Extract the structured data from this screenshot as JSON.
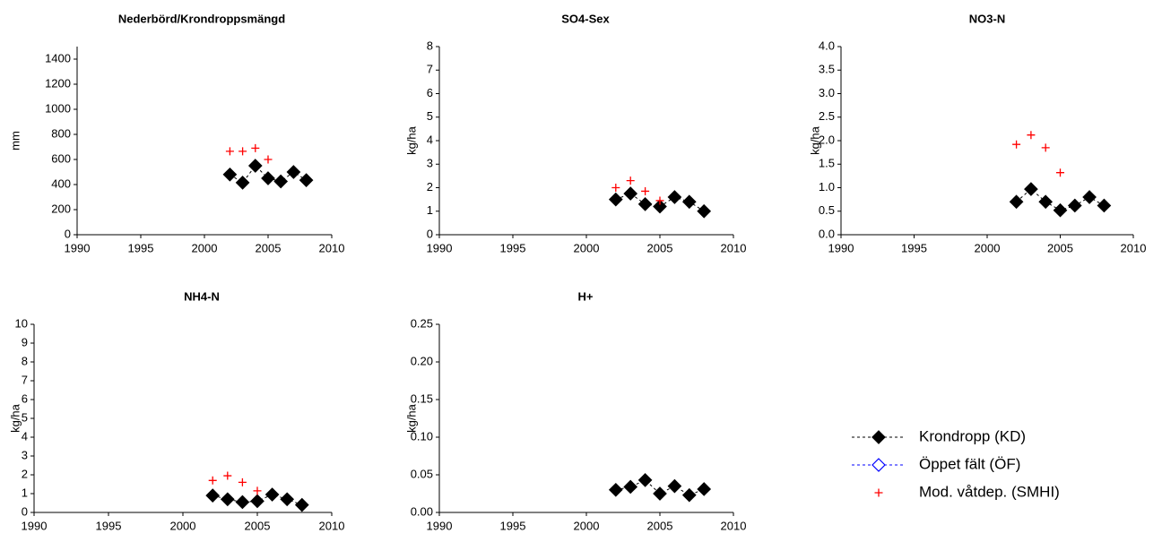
{
  "chart_data": [
    {
      "type": "scatter",
      "title": "Nederbörd/Krondroppsmängd",
      "ylabel": "mm",
      "xlim": [
        1990,
        2010
      ],
      "xticks": [
        1990,
        1995,
        2000,
        2005,
        2010
      ],
      "ylim": [
        0,
        1500
      ],
      "yticks": [
        0,
        200,
        400,
        600,
        800,
        1000,
        1200,
        1400
      ],
      "series": [
        {
          "x": [
            2002,
            2003,
            2004,
            2005,
            2006,
            2007,
            2008
          ],
          "values": [
            480,
            415,
            550,
            450,
            425,
            500,
            435
          ]
        },
        {
          "x": [],
          "values": []
        },
        {
          "x": [
            2002,
            2003,
            2004,
            2005
          ],
          "values": [
            665,
            665,
            690,
            600
          ]
        }
      ]
    },
    {
      "type": "scatter",
      "title": "SO4-Sex",
      "ylabel": "kg/ha",
      "xlim": [
        1990,
        2010
      ],
      "xticks": [
        1990,
        1995,
        2000,
        2005,
        2010
      ],
      "ylim": [
        0,
        8
      ],
      "yticks": [
        0,
        1,
        2,
        3,
        4,
        5,
        6,
        7,
        8
      ],
      "series": [
        {
          "x": [
            2002,
            2003,
            2004,
            2005,
            2006,
            2007,
            2008
          ],
          "values": [
            1.5,
            1.75,
            1.3,
            1.2,
            1.6,
            1.4,
            1.0
          ]
        },
        {
          "x": [],
          "values": []
        },
        {
          "x": [
            2002,
            2003,
            2004,
            2005
          ],
          "values": [
            2.0,
            2.3,
            1.85,
            1.45
          ]
        }
      ]
    },
    {
      "type": "scatter",
      "title": "NO3-N",
      "ylabel": "kg/ha",
      "xlim": [
        1990,
        2010
      ],
      "xticks": [
        1990,
        1995,
        2000,
        2005,
        2010
      ],
      "ylim": [
        0,
        4
      ],
      "yticks": [
        {
          "value": 0,
          "label": "0.0"
        },
        0.5,
        {
          "value": 1,
          "label": "1.0"
        },
        1.5,
        {
          "value": 2,
          "label": "2.0"
        },
        2.5,
        {
          "value": 3,
          "label": "3.0"
        },
        3.5,
        {
          "value": 4,
          "label": "4.0"
        }
      ],
      "series": [
        {
          "x": [
            2002,
            2003,
            2004,
            2005,
            2006,
            2007,
            2008
          ],
          "values": [
            0.7,
            0.97,
            0.7,
            0.52,
            0.62,
            0.8,
            0.62
          ]
        },
        {
          "x": [],
          "values": []
        },
        {
          "x": [
            2002,
            2003,
            2004,
            2005
          ],
          "values": [
            1.92,
            2.12,
            1.85,
            1.32
          ]
        }
      ]
    },
    {
      "type": "scatter",
      "title": "NH4-N",
      "ylabel": "kg/ha",
      "xlim": [
        1990,
        2010
      ],
      "xticks": [
        1990,
        1995,
        2000,
        2005,
        2010
      ],
      "ylim": [
        0,
        10
      ],
      "yticks": [
        0,
        1,
        2,
        3,
        4,
        5,
        6,
        7,
        8,
        9,
        10
      ],
      "series": [
        {
          "x": [
            2002,
            2003,
            2004,
            2005,
            2006,
            2007,
            2008
          ],
          "values": [
            0.9,
            0.7,
            0.55,
            0.6,
            0.95,
            0.7,
            0.4
          ]
        },
        {
          "x": [],
          "values": []
        },
        {
          "x": [
            2002,
            2003,
            2004,
            2005
          ],
          "values": [
            1.7,
            1.95,
            1.6,
            1.15
          ]
        }
      ]
    },
    {
      "type": "scatter",
      "title": "H+",
      "ylabel": "kg/ha",
      "xlim": [
        1990,
        2010
      ],
      "xticks": [
        1990,
        1995,
        2000,
        2005,
        2010
      ],
      "ylim": [
        0,
        0.25
      ],
      "yticks": [
        {
          "value": 0,
          "label": "0.00"
        },
        0.05,
        {
          "value": 0.1,
          "label": "0.10"
        },
        0.15,
        {
          "value": 0.2,
          "label": "0.20"
        },
        0.25
      ],
      "series": [
        {
          "x": [
            2002,
            2003,
            2004,
            2005,
            2006,
            2007,
            2008
          ],
          "values": [
            0.03,
            0.034,
            0.043,
            0.025,
            0.035,
            0.023,
            0.031
          ]
        },
        {
          "x": [],
          "values": []
        },
        {
          "x": [],
          "values": []
        }
      ]
    }
  ],
  "legend": [
    {
      "name": "Krondropp (KD)",
      "color": "#000000",
      "marker": "diamond",
      "line": true
    },
    {
      "name": "Öppet fält (ÖF)",
      "color": "#0000ff",
      "marker": "diamond-open",
      "line": true
    },
    {
      "name": "Mod. våtdep. (SMHI)",
      "color": "#ff0000",
      "marker": "plus",
      "line": false
    }
  ]
}
